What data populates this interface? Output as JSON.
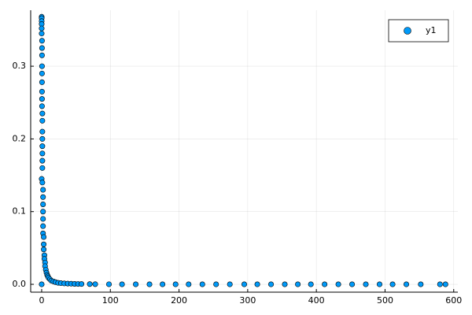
{
  "chart_data": {
    "type": "scatter",
    "series": [
      {
        "name": "y1",
        "color": "#009af9",
        "x": [
          0,
          0,
          0,
          0,
          0,
          0,
          0,
          0.5,
          0.5,
          0.5,
          0.5,
          0.5,
          0.5,
          0.5,
          0.5,
          0.5,
          1,
          1,
          1,
          1,
          1,
          1,
          1,
          1,
          0,
          1,
          2,
          2,
          2,
          2,
          2,
          2,
          2,
          3,
          3,
          3,
          4,
          4,
          5,
          5,
          6,
          7,
          8,
          9,
          10,
          12,
          14,
          17,
          20,
          24,
          28,
          33,
          38,
          43,
          48,
          53,
          58,
          70,
          78,
          98,
          117,
          137,
          157,
          176,
          195,
          214,
          234,
          254,
          274,
          295,
          314,
          334,
          354,
          373,
          392,
          412,
          432,
          452,
          472,
          492,
          511,
          531,
          552,
          580,
          588
        ],
        "values": [
          0,
          0.368,
          0.366,
          0.362,
          0.358,
          0.352,
          0.345,
          0.335,
          0.325,
          0.315,
          0.3,
          0.29,
          0.278,
          0.265,
          0.255,
          0.245,
          0.235,
          0.225,
          0.21,
          0.2,
          0.19,
          0.18,
          0.17,
          0.16,
          0.145,
          0.14,
          0.13,
          0.12,
          0.11,
          0.1,
          0.09,
          0.08,
          0.07,
          0.065,
          0.055,
          0.048,
          0.04,
          0.035,
          0.03,
          0.025,
          0.02,
          0.016,
          0.013,
          0.011,
          0.009,
          0.007,
          0.005,
          0.004,
          0.003,
          0.002,
          0.0016,
          0.0012,
          0.001,
          0.0008,
          0.0006,
          0.0005,
          0.0004,
          0.0003,
          0.0002,
          0.0001,
          0,
          0,
          0,
          0,
          0,
          0,
          0,
          0,
          0,
          0,
          0,
          0,
          0,
          0,
          0,
          0,
          0,
          0,
          0,
          0,
          0,
          0,
          0,
          0,
          0
        ]
      }
    ],
    "xlim": [
      -16,
      606
    ],
    "xticks": [
      0,
      100,
      200,
      300,
      400,
      500,
      600
    ],
    "ylim": [
      -0.0108,
      0.377
    ],
    "yticks": [
      {
        "value": 0,
        "label": "0.0"
      },
      0.1,
      0.2,
      0.3
    ],
    "grid": true,
    "legend": "top-right"
  }
}
